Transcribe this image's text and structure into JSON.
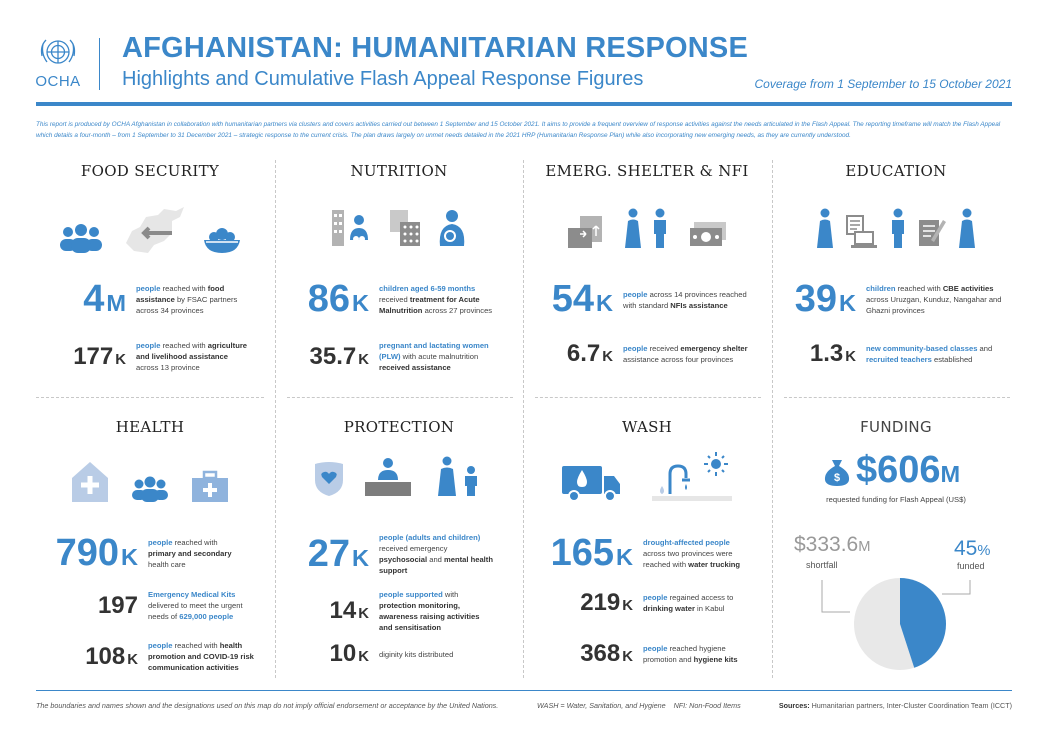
{
  "header": {
    "logo_text": "OCHA",
    "title": "AFGHANISTAN: HUMANITARIAN RESPONSE",
    "subtitle": "Highlights and Cumulative Flash Appeal Response Figures",
    "coverage": "Coverage from 1 September to 15 October 2021",
    "intro": "This report is produced by OCHA Afghanistan in collaboration with humanitarian partners via clusters and covers activities carried out between 1 September and 15 October 2021. It aims to provide a frequent overview of response activities against the needs articulated in the Flash Appeal. The reporting timeframe will match the Flash Appeal which details a four-month – from 1 September to 31 December 2021 – strategic response to the current crisis. The plan draws largely on unmet needs detailed in the 2021 HRP (Humanitarian Response Plan) while also incorporating new emerging needs, as they are currently understood."
  },
  "food": {
    "title": "FOOD SECURITY",
    "s1_num": "4",
    "s1_unit": "M",
    "s1_a": "people",
    "s1_b": " reached with ",
    "s1_c": "food assistance",
    "s1_d": " by FSAC partners across 34 provinces",
    "s2_num": "177",
    "s2_unit": "K",
    "s2_a": "people",
    "s2_b": " reached with ",
    "s2_c": "agriculture and livelihood assistance",
    "s2_d": " across 13 province"
  },
  "nutrition": {
    "title": "NUTRITION",
    "s1_num": "86",
    "s1_unit": "K",
    "s1_a": "children aged 6-59 months",
    "s1_b": " received ",
    "s1_c": "treatment for Acute Malnutrition",
    "s1_d": " across 27 provinces",
    "s2_num": "35.7",
    "s2_unit": "K",
    "s2_a": "pregnant and lactating women (PLW)",
    "s2_b": " with acute malnutrition ",
    "s2_c": "received assistance"
  },
  "shelter": {
    "title": "EMERG. SHELTER & NFI",
    "s1_num": "54",
    "s1_unit": "K",
    "s1_a": "people",
    "s1_b": " across 14 provinces reached with standard ",
    "s1_c": "NFIs assistance",
    "s2_num": "6.7",
    "s2_unit": "K",
    "s2_a": "people",
    "s2_b": " received ",
    "s2_c": "emergency shelter",
    "s2_d": " assistance across four provinces"
  },
  "education": {
    "title": "EDUCATION",
    "s1_num": "39",
    "s1_unit": "K",
    "s1_a": "children",
    "s1_b": " reached with ",
    "s1_c": "CBE activities",
    "s1_d": " across Uruzgan, Kunduz, Nangahar and Ghazni provinces",
    "s2_num": "1.3",
    "s2_unit": "K",
    "s2_a": "new community-based classes",
    "s2_b": " and ",
    "s2_c": "recruited teachers",
    "s2_d": " established"
  },
  "health": {
    "title": "HEALTH",
    "s1_num": "790",
    "s1_unit": "K",
    "s1_a": "people",
    "s1_b": " reached with ",
    "s1_c": "primary and secondary",
    "s1_d": " health care",
    "s2_num": "197",
    "s2_a": "Emergency Medical Kits",
    "s2_b": " delivered  to meet the urgent needs of ",
    "s2_c": "629,000 people",
    "s3_num": "108",
    "s3_unit": "K",
    "s3_a": "people",
    "s3_b": " reached with ",
    "s3_c": "health promotion and COVID-19 risk communication activities"
  },
  "protection": {
    "title": "PROTECTION",
    "s1_num": "27",
    "s1_unit": "K",
    "s1_a": "people (adults and children)",
    "s1_b": " received emergency ",
    "s1_c": "psychosocial",
    "s1_d": " and ",
    "s1_e": "mental health support",
    "s2_num": "14",
    "s2_unit": "K",
    "s2_a": "people supported",
    "s2_b": " with ",
    "s2_c": "protection monitoring, awareness raising activities and sensitisation",
    "s3_num": "10",
    "s3_unit": "K",
    "s3_a": "diginity kits",
    "s3_b": " distributed"
  },
  "wash": {
    "title": "WASH",
    "s1_num": "165",
    "s1_unit": "K",
    "s1_a": "drought-affected people",
    "s1_b": " across two provinces were reached with ",
    "s1_c": "water trucking",
    "s2_num": "219",
    "s2_unit": "K",
    "s2_a": "people",
    "s2_b": " regained access to ",
    "s2_c": "drinking water",
    "s2_d": " in Kabul",
    "s3_num": "368",
    "s3_unit": "K",
    "s3_a": "people",
    "s3_b": " reached hygiene promotion and ",
    "s3_c": "hygiene kits"
  },
  "funding": {
    "title": "FUNDING",
    "amount": "$606",
    "amount_unit": "M",
    "amount_label": "requested funding for Flash Appeal (US$)",
    "shortfall": "$333.6",
    "shortfall_unit": "M",
    "shortfall_label": "shortfall",
    "funded": "45",
    "funded_unit": "%",
    "funded_label": "funded",
    "funded_fraction": 0.45,
    "colors": {
      "funded": "#3b87c9",
      "shortfall": "#e8e8e8"
    }
  },
  "footer": {
    "disclaimer": "The boundaries and names shown and the designations used on this map do not imply official endorsement or acceptance by the United Nations.",
    "abbrev": "WASH = Water, Sanitation, and Hygiene    NFI: Non-Food Items",
    "sources_label": "Sources:",
    "sources": " Humanitarian partners, Inter-Cluster Coordination Team (ICCT)"
  },
  "colors": {
    "accent": "#3b87c9",
    "icon_grey": "#7d7d7d",
    "icon_light": "#b9cce6"
  }
}
